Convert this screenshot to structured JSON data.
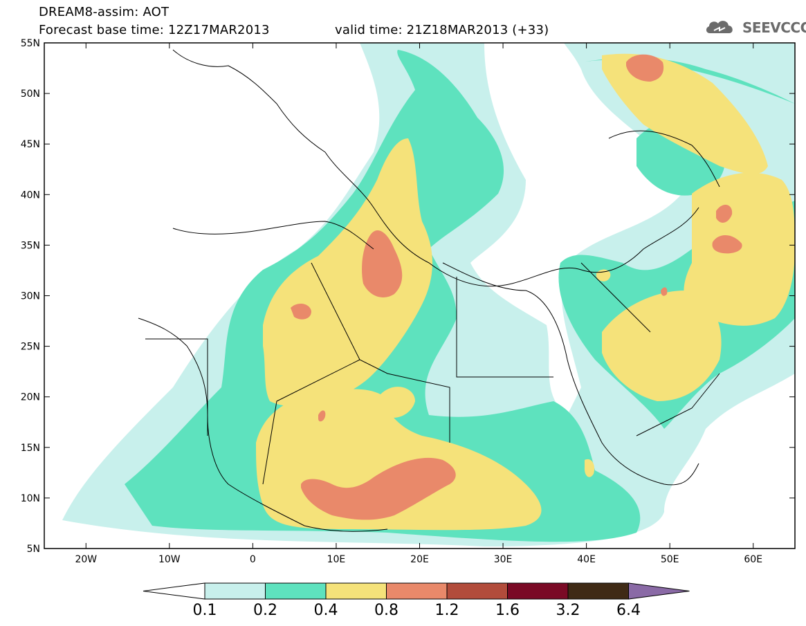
{
  "header": {
    "line1": "DREAM8-assim: AOT",
    "line2": "Forecast base time: 12Z17MAR2013",
    "line3": "valid time: 21Z18MAR2013 (+33)"
  },
  "logo": {
    "text": "SEEVCCC",
    "icon": "cloud-icon"
  },
  "map": {
    "lon_range": [
      -25,
      65
    ],
    "lat_range": [
      5,
      55
    ],
    "x_ticks": [
      "20W",
      "10W",
      "0",
      "10E",
      "20E",
      "30E",
      "40E",
      "50E",
      "60E"
    ],
    "y_ticks": [
      "5N",
      "10N",
      "15N",
      "20N",
      "25N",
      "30N",
      "35N",
      "40N",
      "45N",
      "50N",
      "55N"
    ]
  },
  "colorbar": {
    "labels": [
      "0.1",
      "0.2",
      "0.4",
      "0.8",
      "1.2",
      "1.6",
      "3.2",
      "6.4"
    ],
    "colors": [
      "#c8f0ec",
      "#5ee2be",
      "#f5e27a",
      "#e9896a",
      "#b24c3b",
      "#7a0a25",
      "#3f2a15",
      "#8a6aa6"
    ],
    "under_color": "#ffffff"
  }
}
